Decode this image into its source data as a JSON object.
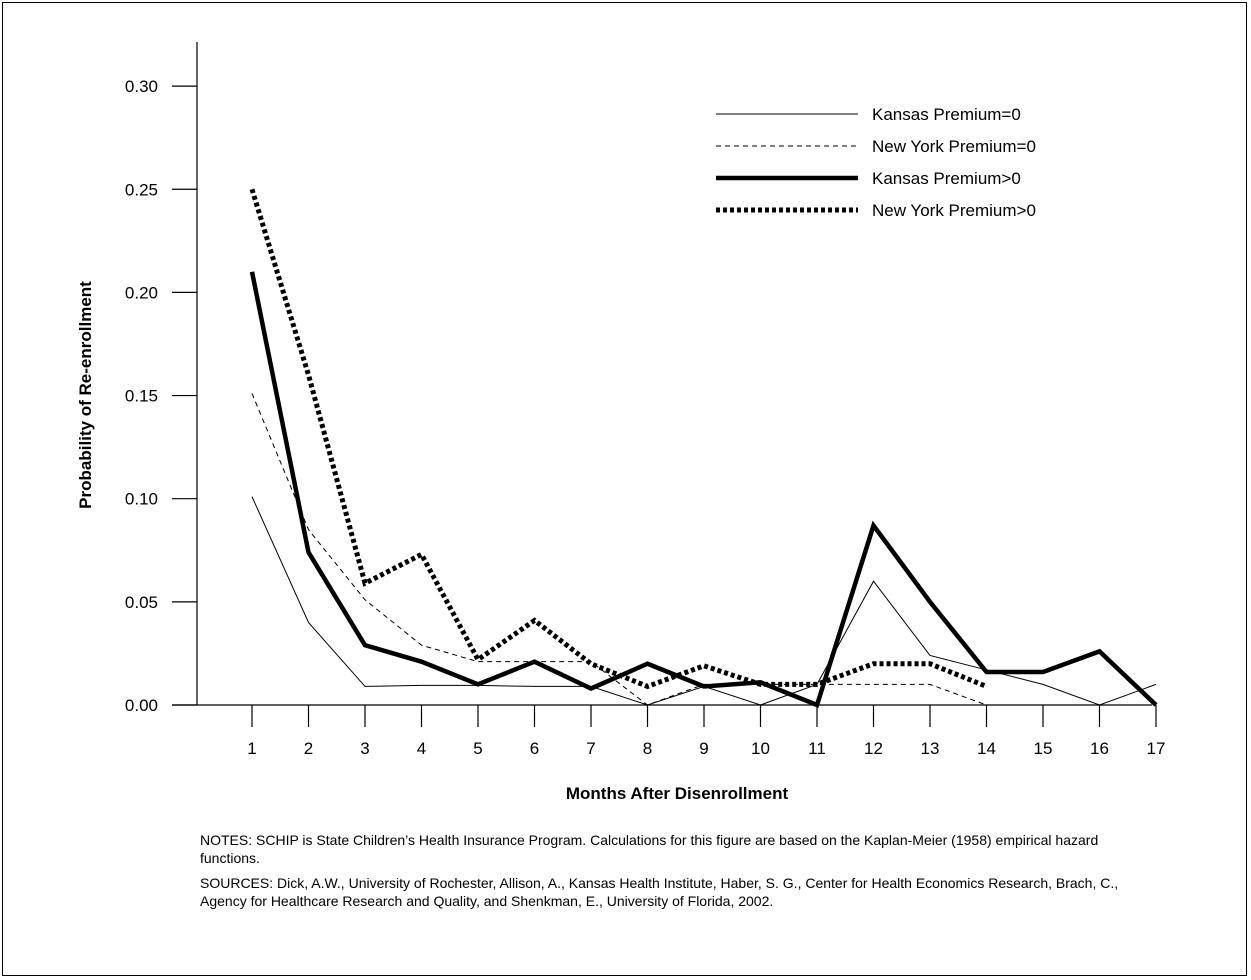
{
  "chart_data": {
    "type": "line",
    "title": "",
    "xlabel": "Months After Disenrollment",
    "ylabel": "Probability of Re-enrollment",
    "x": [
      1,
      2,
      3,
      4,
      5,
      6,
      7,
      8,
      9,
      10,
      11,
      12,
      13,
      14,
      15,
      16,
      17
    ],
    "x_tick_labels": [
      "1",
      "2",
      "3",
      "4",
      "5",
      "6",
      "7",
      "8",
      "9",
      "10",
      "11",
      "12",
      "13",
      "14",
      "15",
      "16",
      "17"
    ],
    "ylim": [
      0,
      0.3
    ],
    "y_ticks": [
      0,
      0.05,
      0.1,
      0.15,
      0.2,
      0.25,
      0.3
    ],
    "y_tick_labels": [
      "0.00",
      "0.05",
      "0.10",
      "0.15",
      "0.20",
      "0.25",
      "0.30"
    ],
    "grid": false,
    "legend_position": "top-right",
    "series": [
      {
        "name": "Kansas Premium=0",
        "style": "thin-solid",
        "values": [
          0.101,
          0.04,
          0.009,
          0.0095,
          0.0095,
          0.009,
          0.009,
          0.0,
          0.009,
          0.0,
          0.01,
          0.06,
          0.024,
          0.017,
          0.01,
          0.0,
          0.01
        ]
      },
      {
        "name": "New York Premium=0",
        "style": "thin-dashed",
        "values": [
          0.151,
          0.085,
          0.051,
          0.029,
          0.021,
          0.021,
          0.021,
          0.0,
          0.01,
          0.01,
          0.01,
          0.01,
          0.01,
          0.0,
          null,
          null,
          null
        ]
      },
      {
        "name": "Kansas Premium>0",
        "style": "thick-solid",
        "values": [
          0.21,
          0.074,
          0.029,
          0.021,
          0.01,
          0.021,
          0.008,
          0.02,
          0.009,
          0.011,
          0.0,
          0.087,
          0.05,
          0.016,
          0.016,
          0.026,
          0.0
        ]
      },
      {
        "name": "New York Premium>0",
        "style": "thick-dotted",
        "values": [
          0.25,
          0.16,
          0.059,
          0.073,
          0.022,
          0.041,
          0.02,
          0.009,
          0.019,
          0.01,
          0.01,
          0.02,
          0.02,
          0.009,
          null,
          null,
          null
        ]
      }
    ]
  },
  "notes": "NOTES: SCHIP is State Children’s Health Insurance Program. Calculations for this figure are based on the Kaplan-Meier (1958) empirical hazard functions.",
  "sources": "SOURCES: Dick, A.W., University of Rochester, Allison, A., Kansas Health Institute, Haber, S. G., Center for Health Economics Research, Brach, C., Agency for Healthcare Research and Quality, and Shenkman, E., University of Florida, 2002."
}
